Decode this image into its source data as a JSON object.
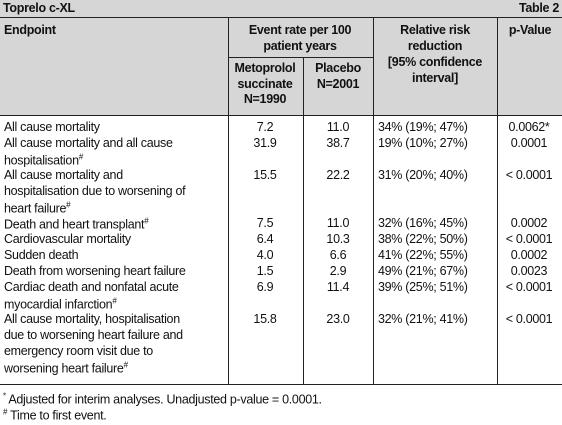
{
  "header": {
    "title": "Toprelo c-XL",
    "table_label": "Table 2"
  },
  "table": {
    "columns": {
      "endpoint": "Endpoint",
      "event_rate": [
        "Event rate per 100",
        "patient years"
      ],
      "metoprolol": [
        "Metoprolol",
        "succinate",
        "N=1990"
      ],
      "placebo": [
        "Placebo",
        "N=2001"
      ],
      "rrr": [
        "Relative risk",
        "reduction",
        "[95% confidence",
        "interval]"
      ],
      "p_value": "p-Value"
    },
    "rows": [
      {
        "endpoint": [
          "All cause mortality"
        ],
        "metoprolol": "7.2",
        "placebo": "11.0",
        "rrr": "34% (19%; 47%)",
        "p": "0.0062*"
      },
      {
        "endpoint": [
          "All cause mortality and all cause",
          "hospitalisation"
        ],
        "marker": "#",
        "metoprolol": "31.9",
        "placebo": "38.7",
        "rrr": "19% (10%; 27%)",
        "p": "0.0001"
      },
      {
        "endpoint": [
          "All cause mortality and",
          "hospitalisation due to worsening of",
          "heart failure"
        ],
        "marker": "#",
        "metoprolol": "15.5",
        "placebo": "22.2",
        "rrr": "31% (20%; 40%)",
        "p": "< 0.0001"
      },
      {
        "endpoint": [
          "Death and heart transplant"
        ],
        "marker": "#",
        "metoprolol": "7.5",
        "placebo": "11.0",
        "rrr": "32% (16%; 45%)",
        "p": "0.0002"
      },
      {
        "endpoint": [
          "Cardiovascular mortality"
        ],
        "metoprolol": "6.4",
        "placebo": "10.3",
        "rrr": "38% (22%; 50%)",
        "p": "< 0.0001"
      },
      {
        "endpoint": [
          "Sudden death"
        ],
        "metoprolol": "4.0",
        "placebo": "6.6",
        "rrr": "41% (22%; 55%)",
        "p": "0.0002"
      },
      {
        "endpoint": [
          "Death from worsening heart failure"
        ],
        "metoprolol": "1.5",
        "placebo": "2.9",
        "rrr": "49% (21%; 67%)",
        "p": "0.0023"
      },
      {
        "endpoint": [
          "Cardiac death and nonfatal acute",
          "myocardial infarction"
        ],
        "marker": "#",
        "metoprolol": "6.9",
        "placebo": "11.4",
        "rrr": "39% (25%; 51%)",
        "p": "< 0.0001"
      },
      {
        "endpoint": [
          "All cause mortality, hospitalisation",
          "due to worsening heart failure and",
          "emergency room visit due to",
          "worsening heart failure"
        ],
        "marker": "#",
        "metoprolol": "15.8",
        "placebo": "23.0",
        "rrr": "32% (21%; 41%)",
        "p": "< 0.0001"
      }
    ]
  },
  "footnotes": [
    {
      "marker": "*",
      "text": "Adjusted for interim analyses. Unadjusted p-value = 0.0001."
    },
    {
      "marker": "#",
      "text": "Time to first event."
    }
  ]
}
